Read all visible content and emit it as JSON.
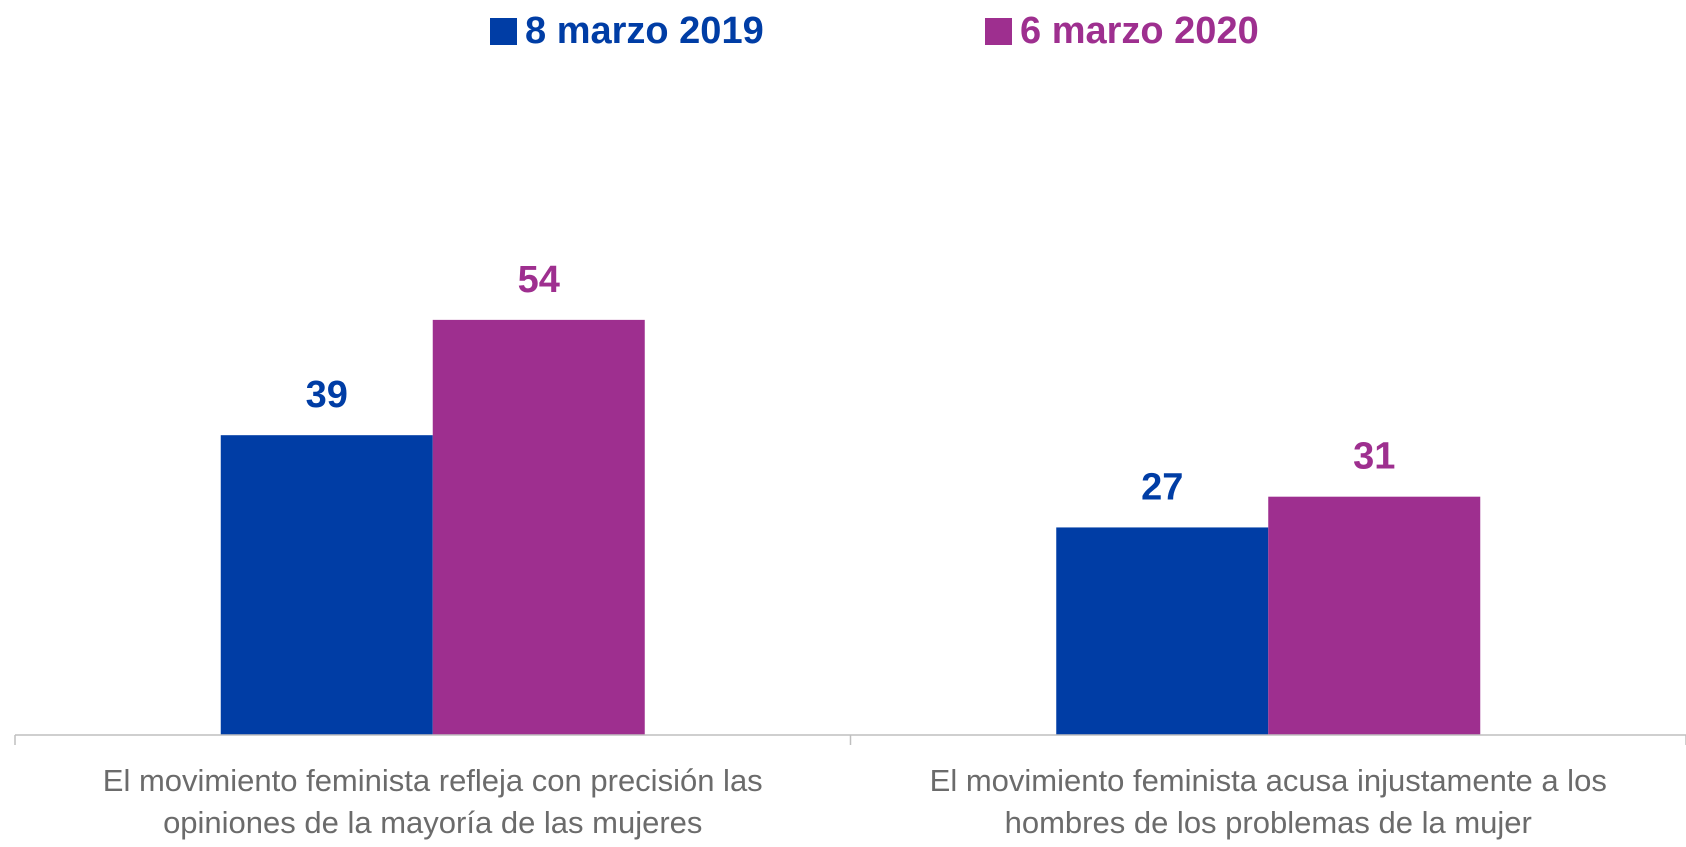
{
  "chart_data": {
    "type": "bar",
    "categories": [
      "El movimiento feminista refleja con precisión las opiniones de la mayoría de las mujeres",
      "El movimiento feminista acusa injustamente a los hombres de los problemas de la mujer"
    ],
    "series": [
      {
        "name": "8 marzo 2019",
        "color": "#003da5",
        "values": [
          39,
          27
        ]
      },
      {
        "name": "6 marzo 2020",
        "color": "#9e2f8f",
        "values": [
          54,
          31
        ]
      }
    ],
    "ylim": [
      0,
      80
    ],
    "legend": "top"
  }
}
